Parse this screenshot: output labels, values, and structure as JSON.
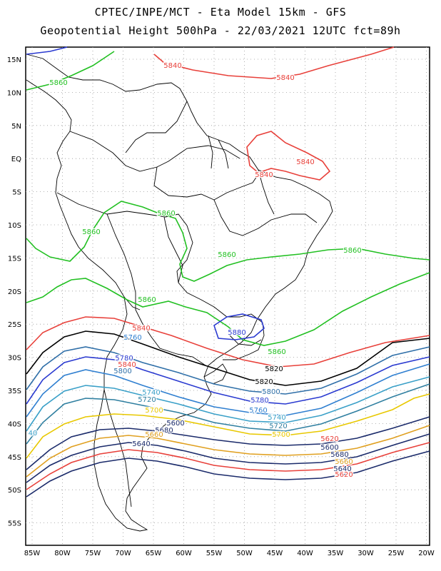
{
  "header": {
    "line1": "CPTEC/INPE/MCT -  Eta Model 15km - GFS",
    "line2": "Geopotential Height 500hPa - 22/03/2021 12UTC fct=89h"
  },
  "map": {
    "lat_ticks": [
      "15N",
      "10N",
      "5N",
      "EQ",
      "5S",
      "10S",
      "15S",
      "20S",
      "25S",
      "30S",
      "35S",
      "40S",
      "45S",
      "50S",
      "55S"
    ],
    "lon_ticks": [
      "85W",
      "80W",
      "75W",
      "70W",
      "65W",
      "60W",
      "55W",
      "50W",
      "45W",
      "40W",
      "35W",
      "30W",
      "25W",
      "20W"
    ],
    "contour_labels": [
      {
        "text": "5840",
        "color": "#e8403a"
      },
      {
        "text": "5840",
        "color": "#e8403a"
      },
      {
        "text": "5840",
        "color": "#e8403a"
      },
      {
        "text": "5840",
        "color": "#e8403a"
      },
      {
        "text": "5860",
        "color": "#22c022"
      },
      {
        "text": "5860",
        "color": "#22c022"
      },
      {
        "text": "5860",
        "color": "#22c022"
      },
      {
        "text": "5860",
        "color": "#22c022"
      },
      {
        "text": "5860",
        "color": "#22c022"
      },
      {
        "text": "5860",
        "color": "#22c022"
      },
      {
        "text": "5860",
        "color": "#22c022"
      },
      {
        "text": "5880",
        "color": "#2a3ad0"
      },
      {
        "text": "5840",
        "color": "#e8403a"
      },
      {
        "text": "5820",
        "color": "#000000"
      },
      {
        "text": "5780",
        "color": "#2a3ad0"
      },
      {
        "text": "5760",
        "color": "#2f7fd0"
      },
      {
        "text": "5800",
        "color": "#2f6fa8"
      },
      {
        "text": "5840",
        "color": "#e8403a"
      },
      {
        "text": "5820",
        "color": "#000000"
      },
      {
        "text": "5800",
        "color": "#2f6fa8"
      },
      {
        "text": "5780",
        "color": "#2a3ad0"
      },
      {
        "text": "5760",
        "color": "#2f7fd0"
      },
      {
        "text": "5740",
        "color": "#3aa0c8"
      },
      {
        "text": "5720",
        "color": "#2f7fa0"
      },
      {
        "text": "5740",
        "color": "#3aa0c8"
      },
      {
        "text": "5720",
        "color": "#2f7fa0"
      },
      {
        "text": "5700",
        "color": "#e8c800"
      },
      {
        "text": "5700",
        "color": "#e8c800"
      },
      {
        "text": "5680",
        "color": "#1a2a6a"
      },
      {
        "text": "5660",
        "color": "#e0a020"
      },
      {
        "text": "5640",
        "color": "#1a2a6a"
      },
      {
        "text": "5620",
        "color": "#e8403a"
      },
      {
        "text": "5600",
        "color": "#1a2a6a"
      },
      {
        "text": "5680",
        "color": "#1a2a6a"
      },
      {
        "text": "5660",
        "color": "#e0a020"
      },
      {
        "text": "5640",
        "color": "#1a2a6a"
      },
      {
        "text": "5620",
        "color": "#e8403a"
      },
      {
        "text": "5600",
        "color": "#1a2a6a"
      },
      {
        "text": "40",
        "color": "#3aa0c8"
      }
    ]
  }
}
